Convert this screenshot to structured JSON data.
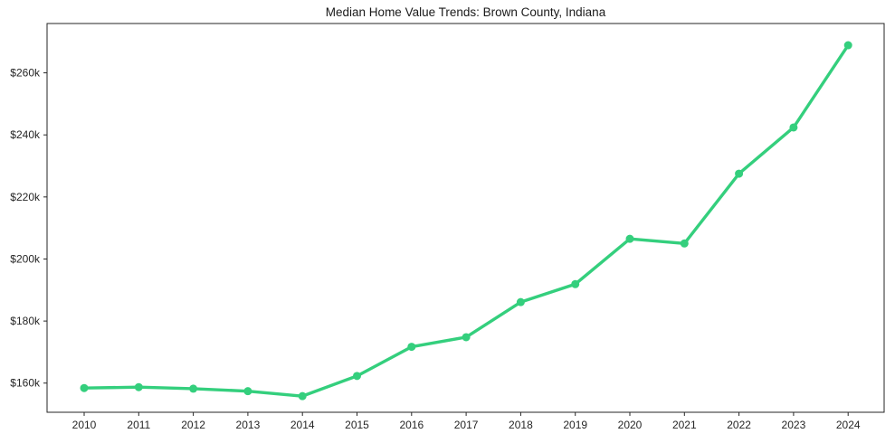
{
  "chart_data": {
    "type": "line",
    "title": "Median Home Value Trends: Brown County, Indiana",
    "series": [
      {
        "name": "Median Home Value",
        "x": [
          2010,
          2011,
          2012,
          2013,
          2014,
          2015,
          2016,
          2017,
          2018,
          2019,
          2020,
          2021,
          2022,
          2023,
          2024
        ],
        "values": [
          158400,
          158700,
          158200,
          157400,
          155800,
          162300,
          171700,
          174800,
          186100,
          191900,
          206500,
          205000,
          227500,
          242400,
          268900
        ]
      }
    ],
    "xlabel": "",
    "ylabel": "",
    "xlim": [
      2009.32,
      2024.66
    ],
    "ylim": [
      150600,
      275900
    ],
    "xticks": {
      "values": [
        2010,
        2011,
        2012,
        2013,
        2014,
        2015,
        2016,
        2017,
        2018,
        2019,
        2020,
        2021,
        2022,
        2023,
        2024
      ],
      "labels": [
        "2010",
        "2011",
        "2012",
        "2013",
        "2014",
        "2015",
        "2016",
        "2017",
        "2018",
        "2019",
        "2020",
        "2021",
        "2022",
        "2023",
        "2024"
      ]
    },
    "yticks": {
      "values": [
        160000,
        180000,
        200000,
        220000,
        240000,
        260000
      ],
      "labels": [
        "$160k",
        "$180k",
        "$200k",
        "$220k",
        "$240k",
        "$260k"
      ]
    },
    "grid": false,
    "legend": "none",
    "marker": "circle",
    "colors": {
      "line": "#34cf7d",
      "marker": "#34cf7d",
      "spine": "#262626",
      "tick_label": "#262626",
      "title": "#1a1a1a",
      "background": "#ffffff"
    }
  }
}
